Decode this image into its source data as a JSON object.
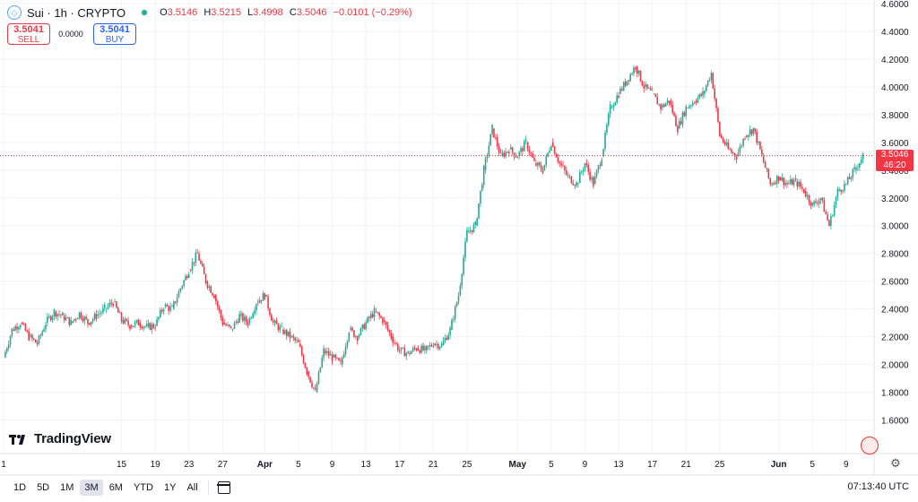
{
  "header": {
    "symbol_title": "Sui · 1h · CRYPTO",
    "o_label": "O",
    "o_value": "3.5146",
    "h_label": "H",
    "h_value": "3.5215",
    "l_label": "L",
    "l_value": "3.4998",
    "c_label": "C",
    "c_value": "3.5046",
    "change": "−0.0101 (−0.29%)"
  },
  "trade": {
    "sell_price": "3.5041",
    "sell_label": "SELL",
    "spread": "0.0000",
    "buy_price": "3.5041",
    "buy_label": "BUY"
  },
  "price_tag": {
    "price": "3.5046",
    "countdown": "46:20"
  },
  "logo": {
    "text": "TradingView"
  },
  "ranges": [
    "1D",
    "5D",
    "1M",
    "3M",
    "6M",
    "YTD",
    "1Y",
    "All"
  ],
  "active_range": "3M",
  "clock": "07:13:40 UTC",
  "colors": {
    "up": "#22ab94",
    "down": "#f23645",
    "grid": "#f0f3fa",
    "axis_text": "#131722"
  },
  "chart_data": {
    "type": "line",
    "title": "",
    "xlabel": "",
    "ylabel": "",
    "ylim": [
      1.5,
      4.6
    ],
    "y_ticks": [
      "1.6000",
      "1.8000",
      "2.0000",
      "2.2000",
      "2.4000",
      "2.6000",
      "2.8000",
      "3.0000",
      "3.2000",
      "3.4000",
      "3.6000",
      "3.8000",
      "4.0000",
      "4.2000",
      "4.4000",
      "4.6000"
    ],
    "x_tick_labels": [
      "1",
      "15",
      "19",
      "23",
      "27",
      "Apr",
      "5",
      "9",
      "13",
      "17",
      "21",
      "25",
      "May",
      "5",
      "9",
      "13",
      "17",
      "21",
      "25",
      "Jun",
      "5",
      "9"
    ],
    "x_tick_days": [
      0,
      14,
      18,
      22,
      26,
      31,
      35,
      39,
      43,
      47,
      51,
      55,
      61,
      65,
      69,
      73,
      77,
      81,
      85,
      92,
      96,
      100
    ],
    "x_range_days": [
      0,
      103
    ],
    "current_price": 3.5046,
    "series": [
      {
        "x": [
          0,
          1,
          2,
          3,
          4,
          5,
          6,
          7,
          8,
          9,
          10,
          11,
          12,
          13,
          14,
          15,
          16,
          17,
          18,
          19,
          20,
          21,
          22,
          23,
          24,
          25,
          26,
          27,
          28,
          29,
          30,
          31,
          32,
          33,
          34,
          35,
          36,
          37,
          38,
          39,
          40,
          41,
          42,
          43,
          44,
          45,
          46,
          47,
          48,
          49,
          50,
          51,
          52,
          53,
          54,
          55,
          56,
          57,
          58,
          59,
          60,
          61,
          62,
          63,
          64,
          65,
          66,
          67,
          68,
          69,
          70,
          71,
          72,
          73,
          74,
          75,
          76,
          77,
          78,
          79,
          80,
          81,
          82,
          83,
          84,
          85,
          86,
          87,
          88,
          89,
          90,
          91,
          92,
          93,
          94,
          95,
          96,
          97,
          98,
          99,
          100,
          101,
          102
        ],
        "values": [
          2.05,
          2.25,
          2.3,
          2.2,
          2.15,
          2.3,
          2.38,
          2.35,
          2.3,
          2.37,
          2.3,
          2.35,
          2.4,
          2.45,
          2.32,
          2.28,
          2.3,
          2.27,
          2.28,
          2.42,
          2.4,
          2.55,
          2.68,
          2.8,
          2.6,
          2.5,
          2.3,
          2.25,
          2.35,
          2.3,
          2.45,
          2.5,
          2.3,
          2.25,
          2.2,
          2.15,
          1.95,
          1.8,
          2.1,
          2.05,
          2.0,
          2.25,
          2.2,
          2.3,
          2.38,
          2.32,
          2.2,
          2.1,
          2.08,
          2.12,
          2.1,
          2.15,
          2.14,
          2.25,
          2.5,
          2.95,
          3.0,
          3.4,
          3.7,
          3.5,
          3.55,
          3.5,
          3.6,
          3.45,
          3.4,
          3.6,
          3.45,
          3.35,
          3.3,
          3.45,
          3.3,
          3.5,
          3.85,
          3.95,
          4.05,
          4.15,
          4.0,
          3.95,
          3.85,
          3.9,
          3.7,
          3.85,
          3.9,
          3.95,
          4.1,
          3.65,
          3.55,
          3.5,
          3.65,
          3.7,
          3.5,
          3.3,
          3.35,
          3.3,
          3.32,
          3.25,
          3.15,
          3.2,
          3.0,
          3.25,
          3.3,
          3.4,
          3.5046
        ]
      }
    ]
  }
}
